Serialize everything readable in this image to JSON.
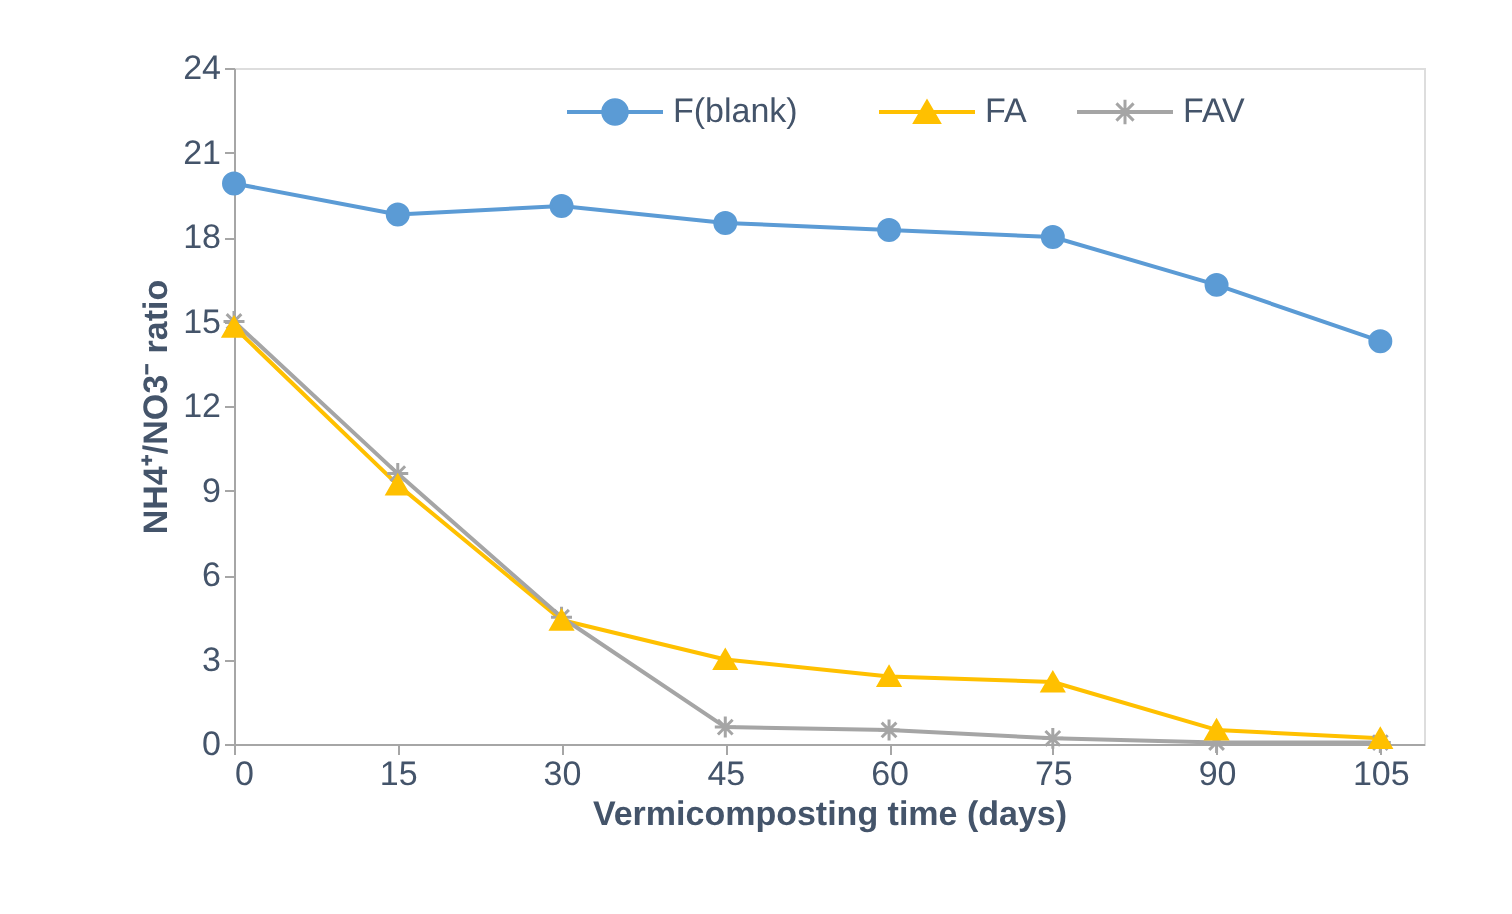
{
  "chart_data": {
    "type": "line",
    "xlabel": "Vermicomposting time (days)",
    "ylabel": "NH4⁺/NO3⁻ ratio",
    "x": [
      0,
      15,
      30,
      45,
      60,
      75,
      90,
      105
    ],
    "xlim": [
      0,
      109
    ],
    "xticks": [
      0,
      15,
      30,
      45,
      60,
      75,
      90,
      105
    ],
    "ylim": [
      0,
      24
    ],
    "yticks": [
      0,
      3,
      6,
      9,
      12,
      15,
      18,
      21,
      24
    ],
    "grid": false,
    "legend": "top right",
    "line_style": "solid",
    "series": [
      {
        "name": "F(blank)",
        "color": "#5b9bd5",
        "marker": "circle",
        "values": [
          19.9,
          18.8,
          19.1,
          18.5,
          18.25,
          18.0,
          16.3,
          14.3
        ]
      },
      {
        "name": "FA",
        "color": "#ffc000",
        "marker": "triangle",
        "values": [
          14.8,
          9.2,
          4.4,
          3.0,
          2.4,
          2.2,
          0.5,
          0.2
        ]
      },
      {
        "name": "FAV",
        "color": "#a5a5a5",
        "marker": "cross",
        "values": [
          15.0,
          9.6,
          4.5,
          0.6,
          0.5,
          0.2,
          0.05,
          0.05
        ]
      }
    ]
  }
}
